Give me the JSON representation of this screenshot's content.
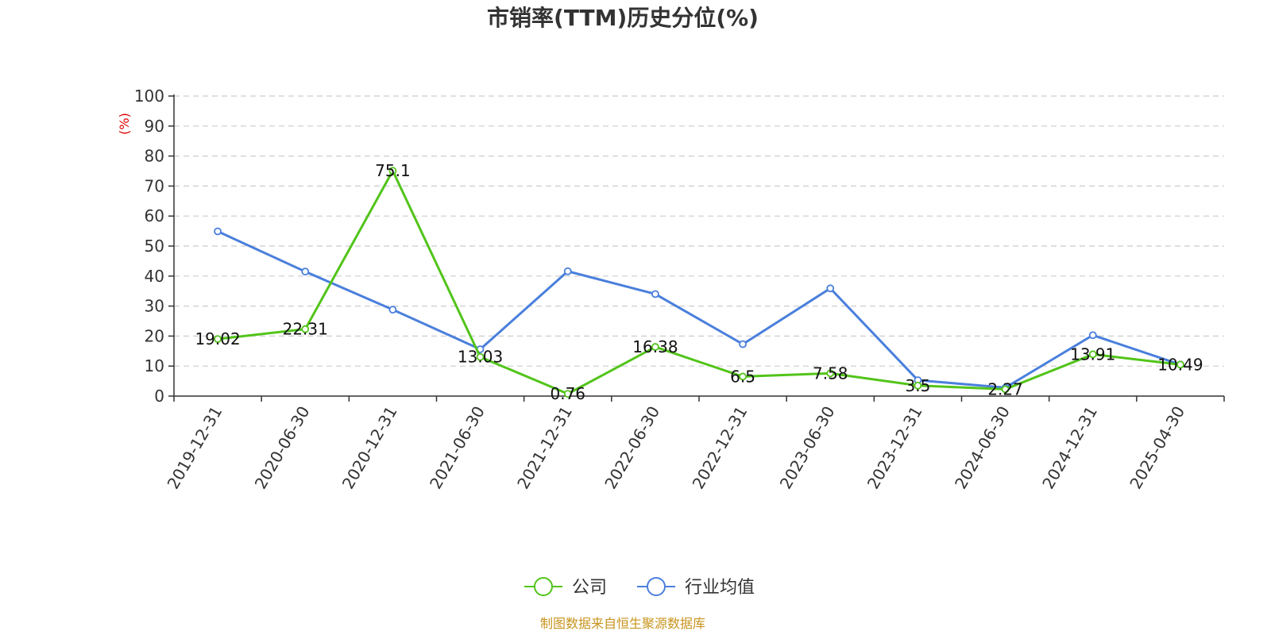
{
  "chart_data": {
    "type": "line",
    "title": "市销率(TTM)历史分位(%)",
    "ylabel": "(%)",
    "xlabel": "",
    "ylim": [
      0,
      100
    ],
    "yticks": [
      0,
      10,
      20,
      30,
      40,
      50,
      60,
      70,
      80,
      90,
      100
    ],
    "grid": true,
    "legend_position": "bottom",
    "categories": [
      "2019-12-31",
      "2020-06-30",
      "2020-12-31",
      "2021-06-30",
      "2021-12-31",
      "2022-06-30",
      "2022-12-31",
      "2023-06-30",
      "2023-12-31",
      "2024-06-30",
      "2024-12-31",
      "2025-04-30"
    ],
    "series": [
      {
        "name": "公司",
        "color": "#52c41a",
        "values": [
          19.02,
          22.31,
          75.1,
          13.03,
          0.76,
          16.38,
          6.5,
          7.58,
          3.5,
          2.27,
          13.91,
          10.49
        ],
        "labels": [
          "19.02",
          "22.31",
          "75.1",
          "13.03",
          "0.76",
          "16.38",
          "6.5",
          "7.58",
          "3.5",
          "2.27",
          "13.91",
          "10.49"
        ]
      },
      {
        "name": "行业均值",
        "color": "#4a7fdc",
        "values": [
          54.9,
          41.5,
          28.8,
          15.6,
          41.6,
          34.0,
          17.3,
          35.9,
          5.3,
          2.8,
          20.3,
          10.5
        ]
      }
    ]
  },
  "footer": {
    "source": "制图数据来自恒生聚源数据库"
  }
}
